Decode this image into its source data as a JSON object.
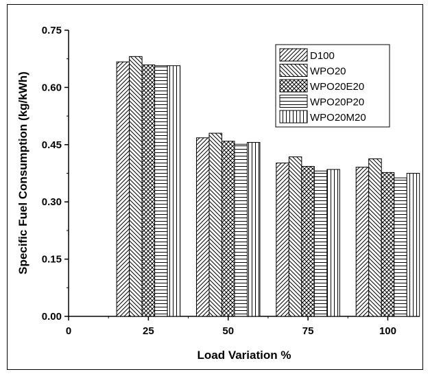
{
  "chart_data": {
    "type": "bar",
    "title": "",
    "xlabel": "Load Variation %",
    "ylabel": "Specific Fuel Consumption (kg/kWh)",
    "x_ticks": [
      "0",
      "25",
      "50",
      "75",
      "100"
    ],
    "y_ticks": [
      "0.00",
      "0.15",
      "0.30",
      "0.45",
      "0.60",
      "0.75"
    ],
    "xlim": [
      0,
      110
    ],
    "ylim": [
      0,
      0.75
    ],
    "categories": [
      25,
      50,
      75,
      100
    ],
    "series": [
      {
        "name": "D100",
        "pattern": "diag-up",
        "values": [
          0.667,
          0.468,
          0.402,
          0.391
        ]
      },
      {
        "name": "WPO20",
        "pattern": "diag-down",
        "values": [
          0.681,
          0.48,
          0.418,
          0.413
        ]
      },
      {
        "name": "WPO20E20",
        "pattern": "crosshatch",
        "values": [
          0.659,
          0.459,
          0.393,
          0.377
        ]
      },
      {
        "name": "WPO20P20",
        "pattern": "horizontal",
        "values": [
          0.657,
          0.451,
          0.381,
          0.363
        ]
      },
      {
        "name": "WPO20M20",
        "pattern": "vertical",
        "values": [
          0.657,
          0.456,
          0.385,
          0.375
        ]
      }
    ],
    "legend_position": "top-right",
    "grid": false
  }
}
